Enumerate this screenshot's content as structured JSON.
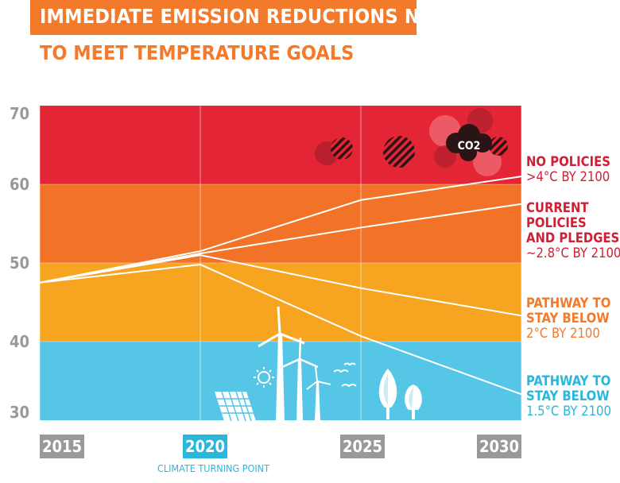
{
  "title": "IMMEDIATE EMISSION REDUCTIONS NEEDED",
  "subtitle": "TO MEET TEMPERATURE GOALS",
  "colors": {
    "red": "#e42535",
    "orange": "#f27327",
    "amber": "#f7a521",
    "blue": "#55c6e6",
    "title_orange": "#f47a2b",
    "tick_gray": "#999999",
    "xtick_bg_gray": "#999999",
    "xtick_bg_blue": "#29b7dc",
    "label_red": "#cf2036",
    "label_blue": "#29b7dc"
  },
  "chart_data": {
    "type": "line",
    "title": "IMMEDIATE EMISSION REDUCTIONS NEEDED",
    "subtitle": "TO MEET TEMPERATURE GOALS",
    "x": [
      2015,
      2020,
      2025,
      2030
    ],
    "x_tick_labels": [
      "2015",
      "2020",
      "2025",
      "2030"
    ],
    "x_note": "CLIMATE TURNING POINT",
    "ylim": [
      30,
      70
    ],
    "y_ticks": [
      70,
      60,
      50,
      40,
      30
    ],
    "grid": true,
    "bands": [
      {
        "from": 60,
        "to": 70,
        "color": "#e42535"
      },
      {
        "from": 50,
        "to": 60,
        "color": "#f27327"
      },
      {
        "from": 40,
        "to": 50,
        "color": "#f7a521"
      },
      {
        "from": 30,
        "to": 40,
        "color": "#55c6e6"
      }
    ],
    "series": [
      {
        "values": [
          47.5,
          51.5,
          58,
          61
        ],
        "label_bold": "NO POLICIES",
        "label_sub": ">4°C BY 2100",
        "label_color": "#cf2036"
      },
      {
        "values": [
          47.5,
          51.2,
          54.5,
          57.5
        ],
        "label_bold": "CURRENT POLICIES AND PLEDGES",
        "label_sub": "~2.8°C BY 2100",
        "label_color": "#cf2036"
      },
      {
        "values": [
          47.5,
          51,
          46.8,
          43.3
        ],
        "label_bold": "PATHWAY TO STAY BELOW",
        "label_sub": "2°C BY 2100",
        "label_color": "#f47a2b"
      },
      {
        "values": [
          47.5,
          49.8,
          40.7,
          33.3
        ],
        "label_bold": "PATHWAY TO STAY BELOW",
        "label_sub": "1.5°C BY 2100",
        "label_color": "#29b7dc"
      }
    ],
    "annotation_co2": "CO2"
  },
  "labels": {
    "no_policies": {
      "bold": "NO POLICIES",
      "sub": ">4°C BY 2100"
    },
    "current": {
      "bold1": "CURRENT",
      "bold2": "POLICIES",
      "bold3": "AND PLEDGES",
      "sub": "~2.8°C BY 2100"
    },
    "two_deg": {
      "bold1": "PATHWAY TO",
      "bold2": "STAY BELOW",
      "sub": "2°C BY 2100"
    },
    "one_five": {
      "bold1": "PATHWAY TO",
      "bold2": "STAY BELOW",
      "sub": "1.5°C BY 2100"
    }
  },
  "icons": [
    "smoke-cloud-icon",
    "co2-cloud-icon",
    "wind-turbine-icon",
    "solar-panel-icon",
    "sun-icon",
    "bird-icon",
    "tree-icon"
  ]
}
